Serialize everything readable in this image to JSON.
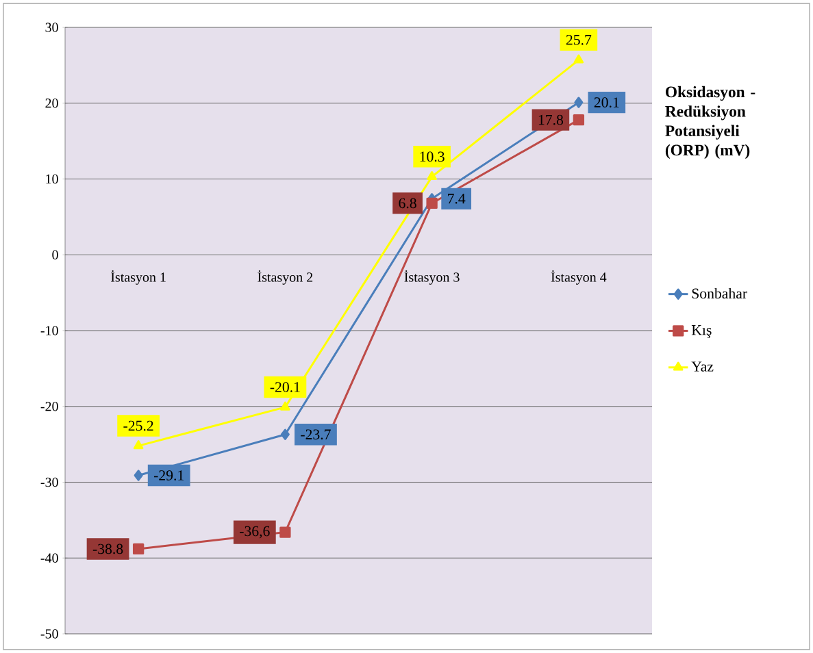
{
  "chart_data": {
    "type": "line",
    "title": "Oksidasyon -Redüksiyon Potansiyeli (ORP) (mV)",
    "categories": [
      "İstasyon 1",
      "İstasyon 2",
      "İstasyon 3",
      "İstasyon 4"
    ],
    "series": [
      {
        "name": "Sonbahar",
        "color": "#4a7ebb",
        "marker": "diamond",
        "values": [
          -29.1,
          -23.7,
          7.4,
          20.1
        ],
        "value_labels": [
          "-29.1",
          "-23.7",
          "7.4",
          "20.1"
        ]
      },
      {
        "name": "Kış",
        "color": "#be4b48",
        "marker": "square",
        "values": [
          -38.8,
          -36.6,
          6.8,
          17.8
        ],
        "value_labels": [
          "-38.8",
          "-36,6",
          "6.8",
          "17.8"
        ]
      },
      {
        "name": "Yaz",
        "color": "#ffff00",
        "marker": "triangle",
        "values": [
          -25.2,
          -20.1,
          10.3,
          25.7
        ],
        "value_labels": [
          "-25.2",
          "-20.1",
          "10.3",
          "25.7"
        ]
      }
    ],
    "ylim": [
      -50,
      30
    ],
    "yticks": [
      -50,
      -40,
      -30,
      -20,
      -10,
      0,
      10,
      20,
      30
    ],
    "grid": "y",
    "legend": "right",
    "line_style": "solid"
  }
}
